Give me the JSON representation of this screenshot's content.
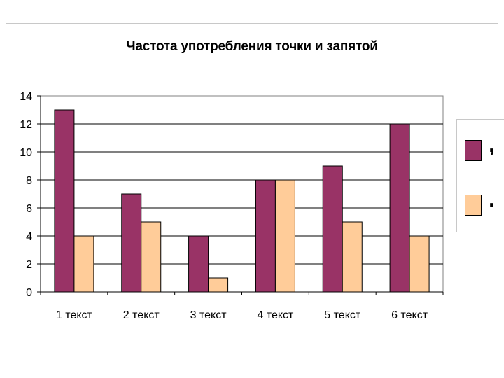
{
  "chart_data": {
    "type": "bar",
    "title": "Частота употребления точки и запятой",
    "categories": [
      "1 текст",
      "2 текст",
      "3 текст",
      "4 текст",
      "5 текст",
      "6 текст"
    ],
    "series": [
      {
        "name": ",",
        "color": "#993366",
        "values": [
          13,
          7,
          4,
          8,
          9,
          12
        ]
      },
      {
        "name": ".",
        "color": "#ffcc99",
        "values": [
          4,
          5,
          1,
          8,
          5,
          4
        ]
      }
    ],
    "ylim": [
      0,
      14
    ],
    "yticks": [
      "0",
      "2",
      "4",
      "6",
      "8",
      "10",
      "12",
      "14"
    ],
    "grid": true,
    "legend": "right",
    "xlabel": "",
    "ylabel": ""
  }
}
